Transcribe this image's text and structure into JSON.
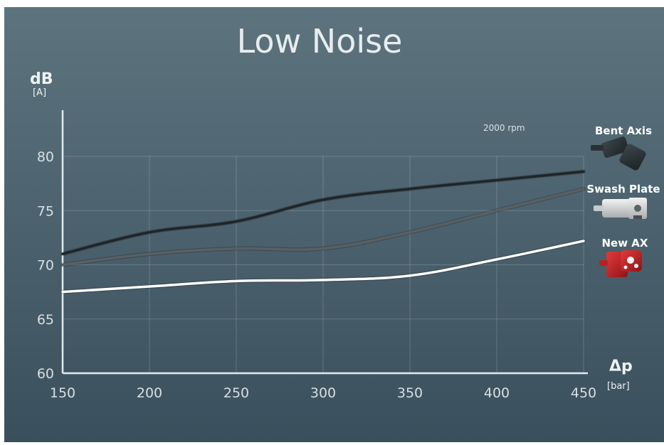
{
  "chart_data": {
    "type": "line",
    "title": "Low Noise",
    "ylabel": "dB",
    "ylabel_unit": "[A]",
    "xlabel": "Δp",
    "xlabel_unit": "[bar]",
    "annotation": "2000 rpm",
    "xlim": [
      150,
      450
    ],
    "ylim": [
      60,
      80
    ],
    "xticks": [
      "150",
      "200",
      "250",
      "300",
      "350",
      "400",
      "450"
    ],
    "yticks": [
      "60",
      "65",
      "70",
      "75",
      "80"
    ],
    "grid": true,
    "legend_placement": "right",
    "x": [
      150,
      200,
      250,
      300,
      350,
      400,
      450
    ],
    "series": [
      {
        "name": "Bent Axis",
        "color": "#1f2528",
        "icon": "bent-axis-pump-icon",
        "values": [
          71.0,
          73.0,
          74.0,
          76.0,
          77.0,
          77.8,
          78.6
        ]
      },
      {
        "name": "Swash Plate",
        "color": "#5b5f61",
        "icon": "swash-plate-pump-icon",
        "values": [
          70.0,
          71.0,
          71.5,
          71.5,
          73.0,
          75.0,
          77.0
        ]
      },
      {
        "name": "New AX",
        "color": "#ffffff",
        "icon": "new-ax-pump-icon",
        "values": [
          67.5,
          68.0,
          68.5,
          68.6,
          69.0,
          70.5,
          72.2
        ]
      }
    ]
  }
}
